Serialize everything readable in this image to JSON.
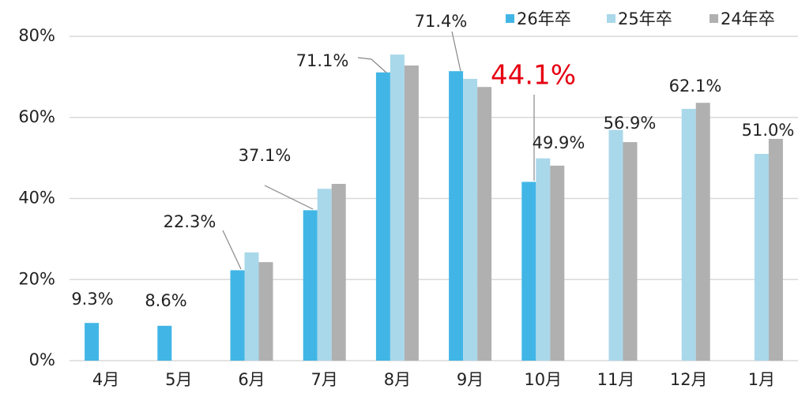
{
  "chart_data": {
    "type": "bar",
    "categories": [
      "4月",
      "5月",
      "6月",
      "7月",
      "8月",
      "9月",
      "10月",
      "11月",
      "12月",
      "1月"
    ],
    "series": [
      {
        "name": "26年卒",
        "color": "#41b6e6",
        "values": [
          9.3,
          8.6,
          22.3,
          37.1,
          71.1,
          71.4,
          44.1,
          null,
          null,
          null
        ],
        "value_labels": [
          "9.3%",
          "8.6%",
          "22.3%",
          "37.1%",
          "71.1%",
          "71.4%",
          "44.1%",
          null,
          null,
          null
        ]
      },
      {
        "name": "25年卒",
        "color": "#a9d8ea",
        "values": [
          null,
          null,
          26.7,
          42.4,
          75.5,
          69.5,
          49.9,
          56.9,
          62.1,
          51.0
        ],
        "value_labels": [
          null,
          null,
          null,
          null,
          null,
          null,
          "49.9%",
          "56.9%",
          "62.1%",
          "51.0%"
        ]
      },
      {
        "name": "24年卒",
        "color": "#b0b0b0",
        "values": [
          null,
          null,
          24.3,
          43.6,
          72.8,
          67.5,
          48.1,
          53.9,
          63.6,
          54.7
        ]
      }
    ],
    "ylim": [
      0,
      80
    ],
    "yticks": [
      {
        "value": 0,
        "label": "0%"
      },
      {
        "value": 20,
        "label": "20%"
      },
      {
        "value": 40,
        "label": "40%"
      },
      {
        "value": 60,
        "label": "60%"
      },
      {
        "value": 80,
        "label": "80%"
      }
    ],
    "grid": true,
    "legend": "top-right",
    "highlight_label": {
      "series": 0,
      "index": 6,
      "color": "#e60012"
    }
  }
}
